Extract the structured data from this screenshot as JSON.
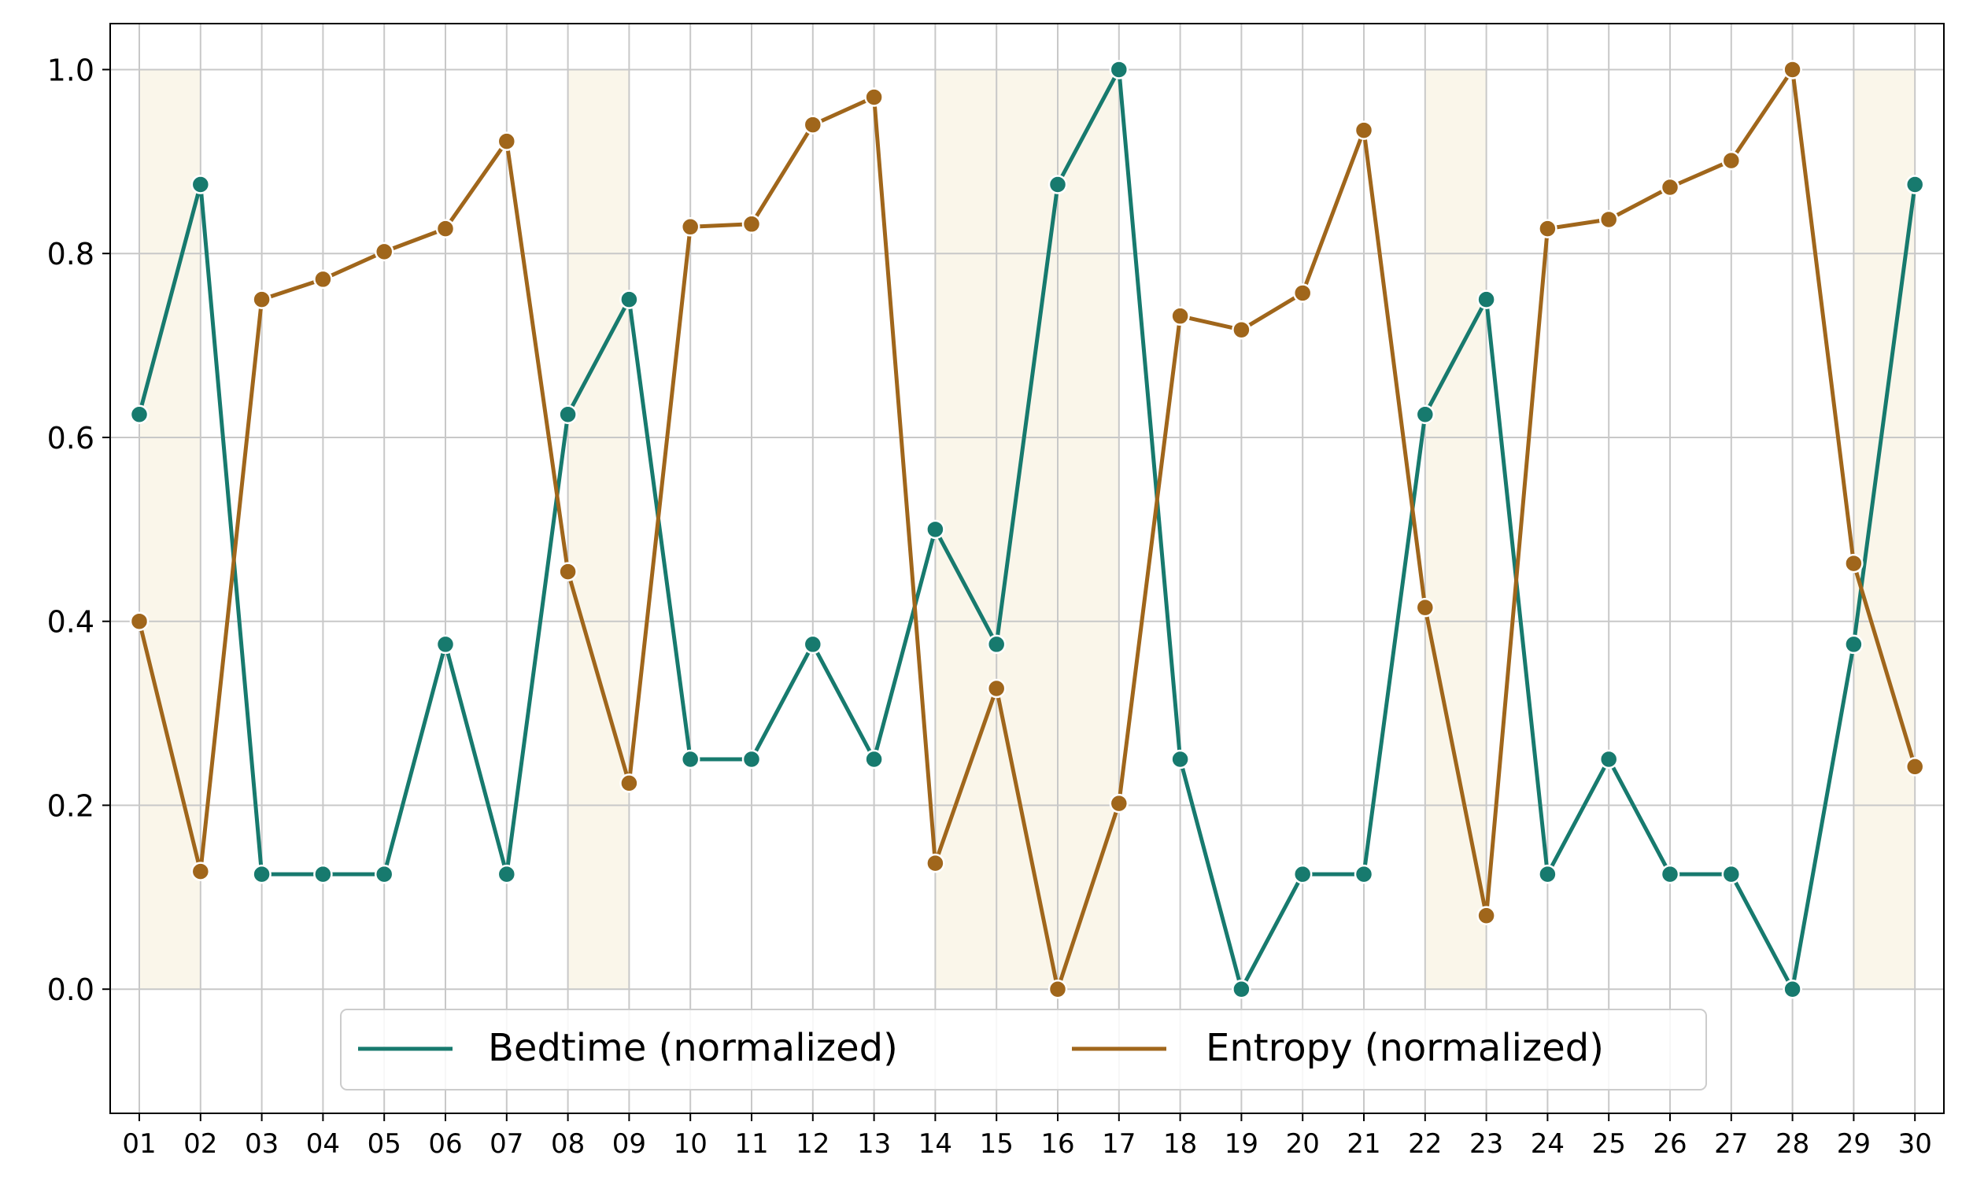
{
  "chart_data": {
    "type": "line",
    "title": "",
    "xlabel": "",
    "ylabel": "",
    "x": [
      "01",
      "02",
      "03",
      "04",
      "05",
      "06",
      "07",
      "08",
      "09",
      "10",
      "11",
      "12",
      "13",
      "14",
      "15",
      "16",
      "17",
      "18",
      "19",
      "20",
      "21",
      "22",
      "23",
      "24",
      "25",
      "26",
      "27",
      "28",
      "29",
      "30"
    ],
    "ylim": [
      -0.135,
      1.05
    ],
    "yticks": [
      "0.0",
      "0.2",
      "0.4",
      "0.6",
      "0.8",
      "1.0"
    ],
    "grid": true,
    "legend_position": "bottom-center",
    "shaded_days": [
      [
        "01",
        "02"
      ],
      [
        "08",
        "09"
      ],
      [
        "14",
        "17"
      ],
      [
        "22",
        "23"
      ],
      [
        "29",
        "30"
      ]
    ],
    "shade_color": "#faf6ea",
    "series": [
      {
        "name": "Bedtime (normalized)",
        "color": "#177a6e",
        "values": [
          0.625,
          0.875,
          0.125,
          0.125,
          0.125,
          0.375,
          0.125,
          0.625,
          0.75,
          0.25,
          0.25,
          0.375,
          0.25,
          0.5,
          0.375,
          0.875,
          1.0,
          0.25,
          0.0,
          0.125,
          0.125,
          0.625,
          0.75,
          0.125,
          0.25,
          0.125,
          0.125,
          0.0,
          0.375,
          0.875
        ]
      },
      {
        "name": "Entropy (normalized)",
        "color": "#a0661b",
        "values": [
          0.4,
          0.128,
          0.75,
          0.772,
          0.802,
          0.827,
          0.922,
          0.454,
          0.224,
          0.829,
          0.832,
          0.94,
          0.97,
          0.137,
          0.327,
          0.0,
          0.202,
          0.732,
          0.717,
          0.757,
          0.934,
          0.415,
          0.08,
          0.827,
          0.837,
          0.872,
          0.901,
          1.0,
          0.463,
          0.242
        ]
      }
    ]
  }
}
